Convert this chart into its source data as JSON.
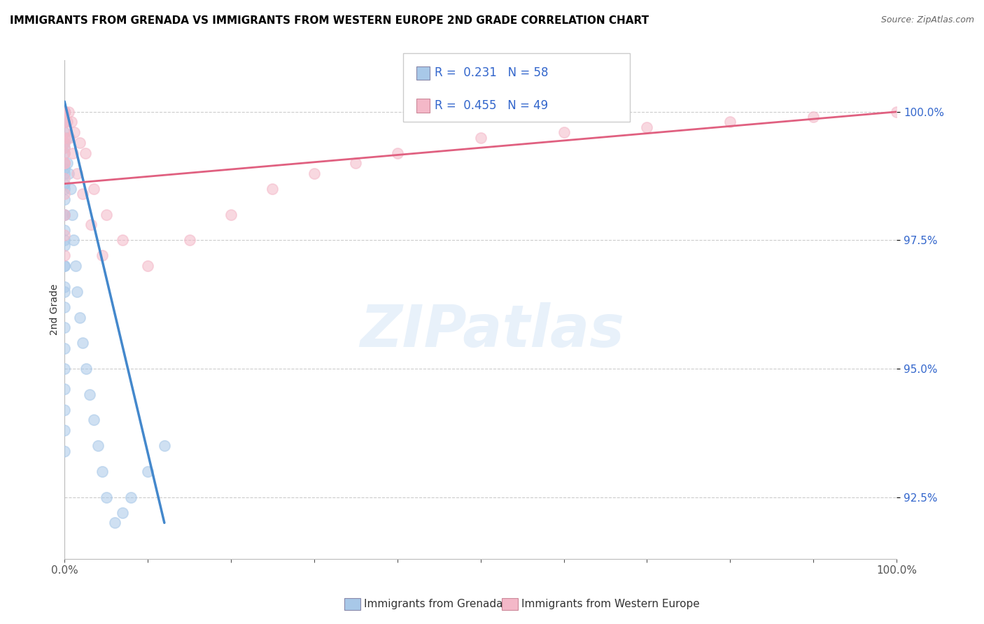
{
  "title": "IMMIGRANTS FROM GRENADA VS IMMIGRANTS FROM WESTERN EUROPE 2ND GRADE CORRELATION CHART",
  "source": "Source: ZipAtlas.com",
  "ylabel": "2nd Grade",
  "xlim": [
    0.0,
    100.0
  ],
  "ylim": [
    91.3,
    101.0
  ],
  "yticks": [
    92.5,
    95.0,
    97.5,
    100.0
  ],
  "ytick_labels": [
    "92.5%",
    "95.0%",
    "97.5%",
    "100.0%"
  ],
  "legend_labels": [
    "Immigrants from Grenada",
    "Immigrants from Western Europe"
  ],
  "R_grenada": 0.231,
  "N_grenada": 58,
  "R_western_europe": 0.455,
  "N_western_europe": 49,
  "color_grenada": "#a8c8e8",
  "color_western_europe": "#f4b8c8",
  "color_trend_grenada": "#4488cc",
  "color_trend_western_europe": "#e06080",
  "scatter_alpha": 0.55,
  "scatter_size": 120,
  "grenada_x": [
    0.0,
    0.0,
    0.0,
    0.0,
    0.0,
    0.0,
    0.0,
    0.0,
    0.0,
    0.0,
    0.0,
    0.0,
    0.0,
    0.0,
    0.0,
    0.0,
    0.0,
    0.0,
    0.0,
    0.0,
    0.0,
    0.0,
    0.0,
    0.0,
    0.0,
    0.0,
    0.0,
    0.0,
    0.0,
    0.0,
    0.3,
    0.3,
    0.5,
    0.7,
    0.9,
    1.1,
    1.3,
    1.5,
    1.8,
    2.2,
    2.6,
    3.0,
    3.5,
    4.0,
    4.5,
    5.0,
    6.0,
    7.0,
    8.0,
    10.0,
    12.0,
    0.0,
    0.0,
    0.0,
    0.0,
    0.0,
    0.0,
    0.0
  ],
  "grenada_y": [
    100.0,
    100.0,
    100.0,
    100.0,
    100.0,
    100.0,
    100.0,
    100.0,
    100.0,
    99.8,
    99.6,
    99.4,
    99.2,
    99.0,
    98.8,
    98.6,
    98.3,
    98.0,
    97.7,
    97.4,
    97.0,
    96.6,
    96.2,
    95.8,
    95.4,
    95.0,
    94.6,
    94.2,
    93.8,
    93.4,
    99.5,
    99.0,
    98.8,
    98.5,
    98.0,
    97.5,
    97.0,
    96.5,
    96.0,
    95.5,
    95.0,
    94.5,
    94.0,
    93.5,
    93.0,
    92.5,
    92.0,
    92.2,
    92.5,
    93.0,
    93.5,
    99.3,
    98.9,
    98.5,
    98.0,
    97.5,
    97.0,
    96.5
  ],
  "western_europe_x": [
    0.0,
    0.0,
    0.0,
    0.0,
    0.0,
    0.0,
    0.0,
    0.0,
    0.0,
    0.0,
    0.0,
    0.0,
    0.0,
    0.5,
    0.8,
    1.2,
    1.8,
    2.5,
    3.5,
    5.0,
    7.0,
    10.0,
    15.0,
    20.0,
    25.0,
    30.0,
    35.0,
    40.0,
    50.0,
    60.0,
    70.0,
    80.0,
    90.0,
    100.0,
    0.0,
    0.0,
    0.0,
    0.0,
    0.0,
    0.0,
    0.0,
    0.0,
    0.3,
    0.6,
    1.0,
    1.5,
    2.2,
    3.2,
    4.5
  ],
  "western_europe_y": [
    100.0,
    100.0,
    100.0,
    100.0,
    100.0,
    100.0,
    100.0,
    100.0,
    99.8,
    99.6,
    99.4,
    99.2,
    99.0,
    100.0,
    99.8,
    99.6,
    99.4,
    99.2,
    98.5,
    98.0,
    97.5,
    97.0,
    97.5,
    98.0,
    98.5,
    98.8,
    99.0,
    99.2,
    99.5,
    99.6,
    99.7,
    99.8,
    99.9,
    100.0,
    99.5,
    99.3,
    99.0,
    98.7,
    98.4,
    98.0,
    97.6,
    97.2,
    99.8,
    99.5,
    99.2,
    98.8,
    98.4,
    97.8,
    97.2
  ],
  "trend_grenada_x0": 0.0,
  "trend_grenada_x1": 12.0,
  "trend_grenada_y0": 100.2,
  "trend_grenada_y1": 92.0,
  "trend_western_europe_x0": 0.0,
  "trend_western_europe_x1": 100.0,
  "trend_western_europe_y0": 98.6,
  "trend_western_europe_y1": 100.0
}
